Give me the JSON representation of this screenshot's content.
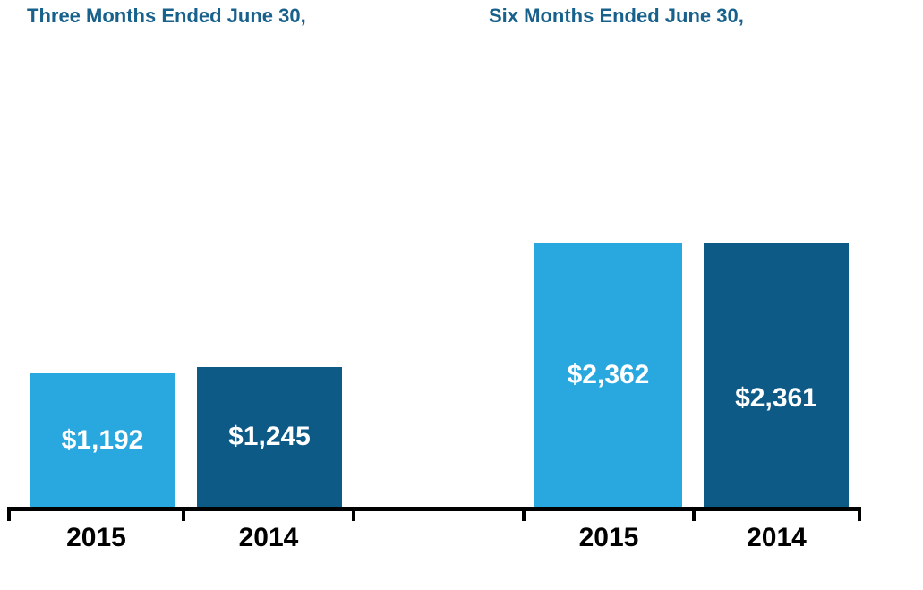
{
  "page": {
    "background_color": "#FFFFFF",
    "title_color": "#17618C",
    "axis_color": "#000000",
    "bar_label_color": "#FFFFFF",
    "light_blue": "#29A8E0",
    "dark_blue": "#0E5A87"
  },
  "chart_data": [
    {
      "type": "bar",
      "title": "Three Months Ended June 30,",
      "categories": [
        "2015",
        "2014"
      ],
      "values": [
        1192,
        1245
      ],
      "value_labels": [
        "$1,192",
        "$1,245"
      ],
      "bar_colors": [
        "#29A8E0",
        "#0E5A87"
      ],
      "ylim": [
        0,
        2375
      ],
      "grid": false,
      "legend": "none",
      "value_label_position": "inside-center"
    },
    {
      "type": "bar",
      "title": "Six Months Ended June 30,",
      "categories": [
        "2015",
        "2014"
      ],
      "values": [
        2362,
        2361
      ],
      "value_labels": [
        "$2,362",
        "$2,361"
      ],
      "bar_colors": [
        "#29A8E0",
        "#0E5A87"
      ],
      "ylim": [
        0,
        2375
      ],
      "grid": false,
      "legend": "none",
      "value_label_position": "inside-center"
    }
  ]
}
